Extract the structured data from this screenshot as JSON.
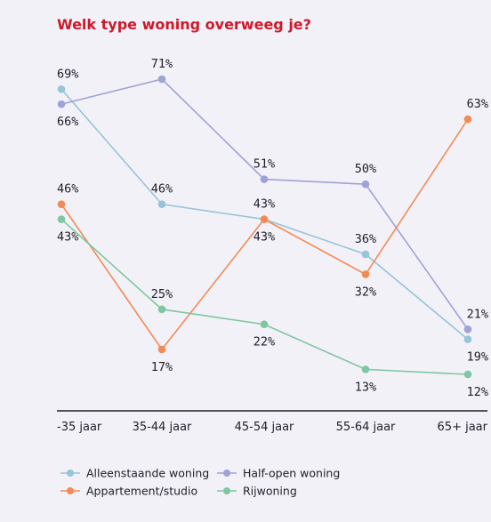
{
  "chart_data": {
    "type": "line",
    "title": "Welk type woning overweeg je?",
    "categories": [
      "-35 jaar",
      "35-44 jaar",
      "45-54 jaar",
      "55-64 jaar",
      "65+ jaar"
    ],
    "ylim": [
      0,
      80
    ],
    "grid": false,
    "legend_position": "bottom",
    "series": [
      {
        "name": "Alleenstaande woning",
        "color": "#96c4d8",
        "values": [
          69,
          46,
          43,
          36,
          19
        ]
      },
      {
        "name": "Half-open woning",
        "color": "#9ea2d6",
        "values": [
          66,
          71,
          51,
          50,
          21
        ]
      },
      {
        "name": "Appartement/studio",
        "color": "#f28a55",
        "values": [
          46,
          17,
          43,
          32,
          63
        ]
      },
      {
        "name": "Rijwoning",
        "color": "#7ec7a0",
        "values": [
          43,
          25,
          22,
          13,
          12
        ]
      }
    ],
    "data_labels": [
      {
        "text": "69%",
        "category": 0,
        "series": "Alleenstaande woning"
      },
      {
        "text": "66%",
        "category": 0,
        "series": "Half-open woning"
      },
      {
        "text": "46%",
        "category": 0,
        "series": "Appartement/studio"
      },
      {
        "text": "43%",
        "category": 0,
        "series": "Rijwoning"
      },
      {
        "text": "71%",
        "category": 1,
        "series": "Half-open woning"
      },
      {
        "text": "46%",
        "category": 1,
        "series": "Alleenstaande woning"
      },
      {
        "text": "25%",
        "category": 1,
        "series": "Rijwoning"
      },
      {
        "text": "17%",
        "category": 1,
        "series": "Appartement/studio"
      },
      {
        "text": "51%",
        "category": 2,
        "series": "Half-open woning"
      },
      {
        "text": "43%",
        "category": 2,
        "series": "Alleenstaande woning"
      },
      {
        "text": "43%",
        "category": 2,
        "series": "Appartement/studio"
      },
      {
        "text": "22%",
        "category": 2,
        "series": "Rijwoning"
      },
      {
        "text": "50%",
        "category": 3,
        "series": "Half-open woning"
      },
      {
        "text": "36%",
        "category": 3,
        "series": "Alleenstaande woning"
      },
      {
        "text": "32%",
        "category": 3,
        "series": "Appartement/studio"
      },
      {
        "text": "13%",
        "category": 3,
        "series": "Rijwoning"
      },
      {
        "text": "63%",
        "category": 4,
        "series": "Appartement/studio"
      },
      {
        "text": "21%",
        "category": 4,
        "series": "Half-open woning"
      },
      {
        "text": "19%",
        "category": 4,
        "series": "Alleenstaande woning"
      },
      {
        "text": "12%",
        "category": 4,
        "series": "Rijwoning"
      }
    ],
    "axis_color": "#1e1e2a"
  }
}
